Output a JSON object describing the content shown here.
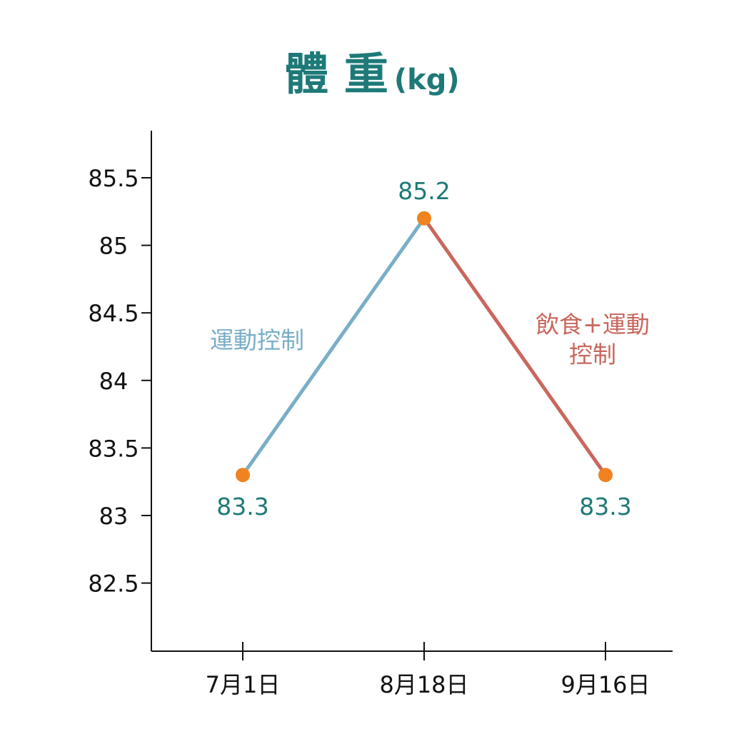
{
  "chart_data": {
    "type": "line",
    "title": "體 重",
    "title_unit": "(kg)",
    "xlabel": "",
    "ylabel": "",
    "categories": [
      "7月1日",
      "8月18日",
      "9月16日"
    ],
    "values": [
      83.3,
      85.2,
      83.3
    ],
    "data_labels": [
      "83.3",
      "85.2",
      "83.3"
    ],
    "ylim": [
      82,
      85.85
    ],
    "yticks": [
      82.5,
      83,
      83.5,
      84,
      84.5,
      85,
      85.5
    ],
    "ytick_labels": [
      "82.5",
      "83",
      "83.5",
      "84",
      "84.5",
      "85",
      "85.5"
    ],
    "grid": false,
    "legend": "none",
    "segments": [
      {
        "from": 0,
        "to": 1,
        "color": "#79aec8",
        "annotation": [
          "運動控制"
        ]
      },
      {
        "from": 1,
        "to": 2,
        "color": "#c9675d",
        "annotation": [
          "飲食+運動",
          "控制"
        ]
      }
    ],
    "colors": {
      "title": "#1e7a78",
      "data_label": "#1e7a78",
      "marker": "#f0831f",
      "axis": "#111111"
    }
  }
}
